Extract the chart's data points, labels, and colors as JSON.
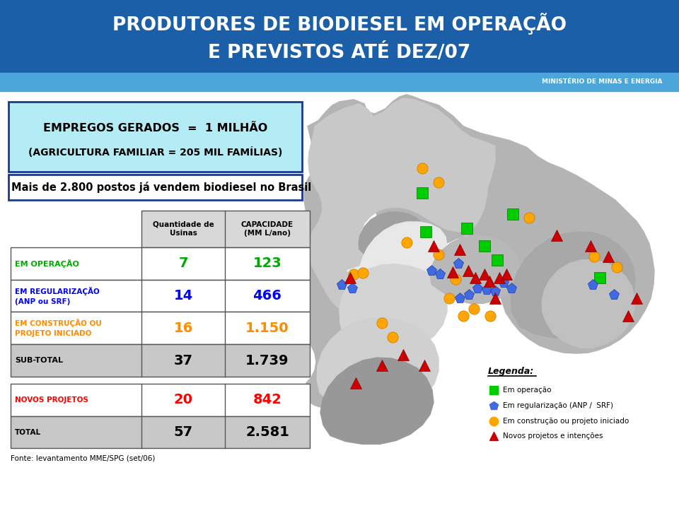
{
  "title_line1": "PRODUTORES DE BIODIESEL EM OPERAÇÃO",
  "title_line2": "E PREVISTOS ATÉ DEZ/07",
  "title_bg_color": "#1a5fa8",
  "title_text_color": "#ffffff",
  "subtitle_ministry": "MINISTÉRIO DE MINAS E ENERGIA",
  "header_strip_color": "#4da6d9",
  "empregos_text": "EMPREGOS GERADOS  =  1 MILHÃO",
  "empregos_sub": "(AGRICULTURA FAMILIAR = 205 MIL FAMÍLIAS)",
  "empregos_bg": "#b3ecf5",
  "postos_text": "Mais de 2.800 postos já vendem biodiesel no Brasil",
  "table_header1": "Quantidade de\nUsinas",
  "table_header2": "CAPACIDADE\n(MM L/ano)",
  "rows": [
    {
      "label": "EM OPERAÇÃO",
      "label_color": "#00aa00",
      "qty": "7",
      "cap": "123",
      "value_color": "#00aa00",
      "bg": "#ffffff"
    },
    {
      "label": "EM REGULARIZAÇÃO\n(ANP ou SRF)",
      "label_color": "#0000ff",
      "qty": "14",
      "cap": "466",
      "value_color": "#0000ff",
      "bg": "#ffffff"
    },
    {
      "label": "EM CONSTRUÇÃO OU\nPROJETO INICIADO",
      "label_color": "#ff8c00",
      "qty": "16",
      "cap": "1.150",
      "value_color": "#ff8c00",
      "bg": "#ffffff"
    },
    {
      "label": "SUB-TOTAL",
      "label_color": "#000000",
      "qty": "37",
      "cap": "1.739",
      "value_color": "#000000",
      "bg": "#c8c8c8"
    }
  ],
  "rows2": [
    {
      "label": "NOVOS PROJETOS",
      "label_color": "#ff0000",
      "qty": "20",
      "cap": "842",
      "value_color": "#ff0000",
      "bg": "#ffffff"
    },
    {
      "label": "TOTAL",
      "label_color": "#000000",
      "qty": "57",
      "cap": "2.581",
      "value_color": "#000000",
      "bg": "#c8c8c8"
    }
  ],
  "fonte": "Fonte: levantamento MME/SPG (set/06)",
  "legend_items": [
    {
      "label": "Em operação",
      "color": "#00cc00",
      "marker": "s"
    },
    {
      "label": "Em regularização (ANP /  SRF)",
      "color": "#4169e1",
      "marker": "p"
    },
    {
      "label": "Em construção ou projeto iniciado",
      "color": "#ffa500",
      "marker": "o"
    },
    {
      "label": "Novos projetos e intenções",
      "color": "#cc0000",
      "marker": "^"
    }
  ]
}
